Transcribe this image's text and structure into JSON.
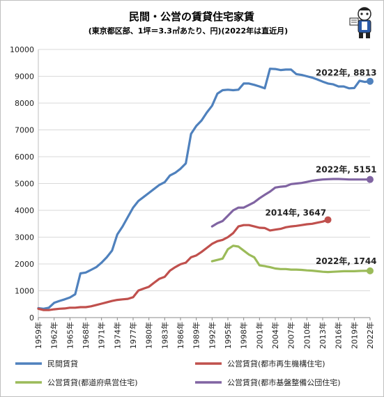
{
  "chart_data": {
    "type": "line",
    "title": "民間・公営の賃貸住宅家賃",
    "subtitle": "(東京都区部、1坪＝3.3㎡あたり、円)(2022年は直近月)",
    "xlim": [
      1959,
      2022
    ],
    "ylim": [
      0,
      10000
    ],
    "yticks": [
      0,
      1000,
      2000,
      3000,
      4000,
      5000,
      6000,
      7000,
      8000,
      9000,
      10000
    ],
    "xticks": [
      {
        "value": 1959,
        "label": "1959年"
      },
      {
        "value": 1962,
        "label": "1962年"
      },
      {
        "value": 1965,
        "label": "1965年"
      },
      {
        "value": 1968,
        "label": "1968年"
      },
      {
        "value": 1971,
        "label": "1971年"
      },
      {
        "value": 1974,
        "label": "1974年"
      },
      {
        "value": 1977,
        "label": "1977年"
      },
      {
        "value": 1980,
        "label": "1980年"
      },
      {
        "value": 1983,
        "label": "1983年"
      },
      {
        "value": 1986,
        "label": "1986年"
      },
      {
        "value": 1989,
        "label": "1989年"
      },
      {
        "value": 1992,
        "label": "1992年"
      },
      {
        "value": 1995,
        "label": "1995年"
      },
      {
        "value": 1998,
        "label": "1998年"
      },
      {
        "value": 2001,
        "label": "2001年"
      },
      {
        "value": 2004,
        "label": "2004年"
      },
      {
        "value": 2007,
        "label": "2007年"
      },
      {
        "value": 2010,
        "label": "2010年"
      },
      {
        "value": 2013,
        "label": "2013年"
      },
      {
        "value": 2016,
        "label": "2016年"
      },
      {
        "value": 2019,
        "label": "2019年"
      },
      {
        "value": 2022,
        "label": "2022年"
      }
    ],
    "grid": true,
    "legend_position": "bottom",
    "series": [
      {
        "name": "民間賃貸",
        "color": "#4f81bd",
        "x": [
          1959,
          1960,
          1961,
          1962,
          1963,
          1964,
          1965,
          1966,
          1967,
          1968,
          1969,
          1970,
          1971,
          1972,
          1973,
          1974,
          1975,
          1976,
          1977,
          1978,
          1979,
          1980,
          1981,
          1982,
          1983,
          1984,
          1985,
          1986,
          1987,
          1988,
          1989,
          1990,
          1991,
          1992,
          1993,
          1994,
          1995,
          1996,
          1997,
          1998,
          1999,
          2000,
          2001,
          2002,
          2003,
          2004,
          2005,
          2006,
          2007,
          2008,
          2009,
          2010,
          2011,
          2012,
          2013,
          2014,
          2015,
          2016,
          2017,
          2018,
          2019,
          2020,
          2021,
          2022
        ],
        "y": [
          350,
          330,
          370,
          550,
          620,
          680,
          750,
          870,
          1650,
          1680,
          1780,
          1880,
          2050,
          2250,
          2500,
          3100,
          3400,
          3750,
          4100,
          4350,
          4500,
          4650,
          4800,
          4950,
          5050,
          5300,
          5400,
          5550,
          5750,
          6850,
          7150,
          7350,
          7650,
          7900,
          8350,
          8480,
          8500,
          8480,
          8500,
          8730,
          8730,
          8680,
          8620,
          8550,
          9280,
          9270,
          9230,
          9250,
          9250,
          9080,
          9050,
          9000,
          8950,
          8880,
          8800,
          8730,
          8700,
          8620,
          8620,
          8550,
          8560,
          8830,
          8790,
          8813
        ],
        "annotation": "2022年, 8813"
      },
      {
        "name": "公営賃貸(都市再生機構住宅)",
        "color": "#c0504d",
        "x": [
          1959,
          1960,
          1961,
          1962,
          1963,
          1964,
          1965,
          1966,
          1967,
          1968,
          1969,
          1970,
          1971,
          1972,
          1973,
          1974,
          1975,
          1976,
          1977,
          1978,
          1979,
          1980,
          1981,
          1982,
          1983,
          1984,
          1985,
          1986,
          1987,
          1988,
          1989,
          1990,
          1991,
          1992,
          1993,
          1994,
          1995,
          1996,
          1997,
          1998,
          1999,
          2000,
          2001,
          2002,
          2003,
          2004,
          2005,
          2006,
          2007,
          2008,
          2009,
          2010,
          2011,
          2012,
          2013,
          2014
        ],
        "y": [
          330,
          280,
          280,
          310,
          330,
          340,
          370,
          370,
          390,
          390,
          420,
          470,
          520,
          570,
          620,
          660,
          680,
          700,
          760,
          1010,
          1080,
          1150,
          1300,
          1450,
          1520,
          1750,
          1880,
          1990,
          2050,
          2250,
          2320,
          2450,
          2600,
          2750,
          2850,
          2900,
          3000,
          3150,
          3400,
          3450,
          3450,
          3400,
          3350,
          3340,
          3250,
          3280,
          3310,
          3370,
          3400,
          3420,
          3450,
          3480,
          3500,
          3540,
          3580,
          3647
        ],
        "annotation": "2014年, 3647"
      },
      {
        "name": "公営賃貸(都道府県営住宅)",
        "color": "#9bbb59",
        "x": [
          1992,
          1993,
          1994,
          1995,
          1996,
          1997,
          1998,
          1999,
          2000,
          2001,
          2002,
          2003,
          2004,
          2005,
          2006,
          2007,
          2008,
          2009,
          2010,
          2011,
          2012,
          2013,
          2014,
          2015,
          2016,
          2017,
          2018,
          2019,
          2020,
          2021,
          2022
        ],
        "y": [
          2100,
          2150,
          2200,
          2550,
          2680,
          2650,
          2500,
          2350,
          2250,
          1950,
          1920,
          1880,
          1830,
          1810,
          1810,
          1790,
          1790,
          1780,
          1760,
          1750,
          1730,
          1710,
          1700,
          1710,
          1720,
          1730,
          1730,
          1730,
          1740,
          1745,
          1744
        ],
        "annotation": "2022年, 1744"
      },
      {
        "name": "公営賃貸(都市基盤整備公団住宅)",
        "color": "#8064a2",
        "x": [
          1992,
          1993,
          1994,
          1995,
          1996,
          1997,
          1998,
          1999,
          2000,
          2001,
          2002,
          2003,
          2004,
          2005,
          2006,
          2007,
          2008,
          2009,
          2010,
          2011,
          2012,
          2013,
          2014,
          2015,
          2016,
          2017,
          2018,
          2019,
          2020,
          2021,
          2022
        ],
        "y": [
          3400,
          3520,
          3600,
          3800,
          4000,
          4100,
          4100,
          4200,
          4300,
          4450,
          4580,
          4700,
          4850,
          4880,
          4900,
          4980,
          5000,
          5020,
          5060,
          5100,
          5130,
          5150,
          5160,
          5170,
          5170,
          5160,
          5150,
          5150,
          5150,
          5150,
          5151
        ],
        "annotation": "2022年, 5151"
      }
    ]
  }
}
